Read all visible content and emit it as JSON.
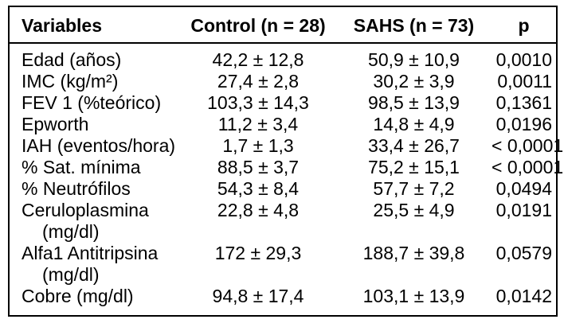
{
  "table": {
    "columns": [
      "Variables",
      "Control (n = 28)",
      "SAHS (n = 73)",
      "p"
    ],
    "rows": [
      {
        "variable": "Edad (años)",
        "unit": "",
        "control": "42,2 ± 12,8",
        "sahs": "50,9 ± 10,9",
        "p": "0,0010"
      },
      {
        "variable": "IMC (kg/m²)",
        "unit": "",
        "control": "27,4 ± 2,8",
        "sahs": "30,2 ± 3,9",
        "p": "0,0011"
      },
      {
        "variable": "FEV 1 (%teórico)",
        "unit": "",
        "control": "103,3 ± 14,3",
        "sahs": "98,5 ± 13,9",
        "p": "0,1361"
      },
      {
        "variable": "Epworth",
        "unit": "",
        "control": "11,2 ± 3,4",
        "sahs": "14,8 ± 4,9",
        "p": "0,0196"
      },
      {
        "variable": "IAH (eventos/hora)",
        "unit": "",
        "control": "1,7 ± 1,3",
        "sahs": "33,4 ± 26,7",
        "p": "< 0,0001"
      },
      {
        "variable": "% Sat. mínima",
        "unit": "",
        "control": "88,5 ± 3,7",
        "sahs": "75,2 ± 15,1",
        "p": "< 0,0001"
      },
      {
        "variable": "% Neutrófilos",
        "unit": "",
        "control": "54,3 ± 8,4",
        "sahs": "57,7 ± 7,2",
        "p": "0,0494"
      },
      {
        "variable": "Ceruloplasmina",
        "unit": "(mg/dl)",
        "control": "22,8 ± 4,8",
        "sahs": "25,5 ± 4,9",
        "p": "0,0191"
      },
      {
        "variable": "Alfa1 Antitripsina",
        "unit": "(mg/dl)",
        "control": "172 ± 29,3",
        "sahs": "188,7 ± 39,8",
        "p": "0,0579"
      },
      {
        "variable": "Cobre (mg/dl)",
        "unit": "",
        "control": "94,8 ± 17,4",
        "sahs": "103,1 ± 13,9",
        "p": "0,0142"
      }
    ]
  },
  "colors": {
    "background": "#ffffff",
    "text": "#000000",
    "border": "#000000"
  }
}
